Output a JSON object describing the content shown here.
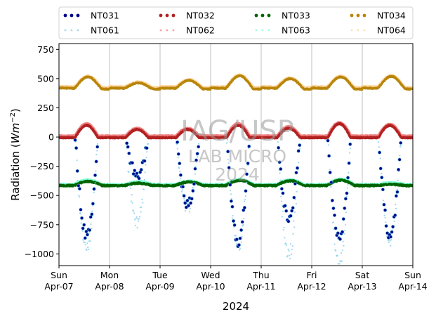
{
  "chart_data": {
    "type": "scatter",
    "title": "",
    "xlabel": "2024",
    "ylabel_prefix": "Radiation (",
    "ylabel_unit": "Wm",
    "ylabel_exp": "−2",
    "ylabel_suffix": ")",
    "ylim": [
      -1100,
      800
    ],
    "xlim": [
      "2024-04-07",
      "2024-04-14"
    ],
    "yticks": [
      {
        "value": 750,
        "label": "750"
      },
      {
        "value": 500,
        "label": "500"
      },
      {
        "value": 250,
        "label": "250"
      },
      {
        "value": 0,
        "label": "0"
      },
      {
        "value": -250,
        "label": "−250"
      },
      {
        "value": -500,
        "label": "−500"
      },
      {
        "value": -750,
        "label": "−750"
      },
      {
        "value": -1000,
        "label": "−1000"
      }
    ],
    "xticks": [
      {
        "date": "2024-04-07",
        "day": "Sun",
        "date_label": "Apr-07"
      },
      {
        "date": "2024-04-08",
        "day": "Mon",
        "date_label": "Apr-08"
      },
      {
        "date": "2024-04-09",
        "day": "Tue",
        "date_label": "Apr-09"
      },
      {
        "date": "2024-04-10",
        "day": "Wed",
        "date_label": "Apr-10"
      },
      {
        "date": "2024-04-11",
        "day": "Thu",
        "date_label": "Apr-11"
      },
      {
        "date": "2024-04-12",
        "day": "Fri",
        "date_label": "Apr-12"
      },
      {
        "date": "2024-04-13",
        "day": "Sat",
        "date_label": "Apr-13"
      },
      {
        "date": "2024-04-14",
        "day": "Sun",
        "date_label": "Apr-14"
      }
    ],
    "grid": "vertical-at-day-ticks",
    "legend_placement": "above-plot, 4 columns",
    "legend": [
      {
        "name": "NT031",
        "color": "#00008b",
        "style": "dots"
      },
      {
        "name": "NT032",
        "color": "#b22222",
        "style": "dots"
      },
      {
        "name": "NT033",
        "color": "#006400",
        "style": "dots"
      },
      {
        "name": "NT034",
        "color": "#b8860b",
        "style": "dots"
      },
      {
        "name": "NT061",
        "color": "#87ceeb",
        "style": "faint-dots"
      },
      {
        "name": "NT062",
        "color": "#f08080",
        "style": "faint-dots"
      },
      {
        "name": "NT063",
        "color": "#7fffd4",
        "style": "faint-dots"
      },
      {
        "name": "NT064",
        "color": "#ffd39b",
        "style": "faint-dots"
      }
    ],
    "series": [
      {
        "name": "NT031",
        "color": "#00008b",
        "description": "Net shortwave: 0 at night, daytime minima per day",
        "daily_min": [
          -840,
          -330,
          -580,
          -900,
          -690,
          -880,
          -840
        ]
      },
      {
        "name": "NT061",
        "color": "#87ceeb",
        "daily_min": [
          -960,
          -720,
          -610,
          -930,
          -1010,
          -1090,
          -890
        ]
      },
      {
        "name": "NT032",
        "color": "#b22222",
        "night": -5,
        "daily_peak": [
          100,
          65,
          65,
          100,
          75,
          115,
          100
        ]
      },
      {
        "name": "NT062",
        "color": "#f08080",
        "night": 5,
        "daily_peak": [
          110,
          70,
          70,
          110,
          85,
          120,
          105
        ]
      },
      {
        "name": "NT033",
        "color": "#006400",
        "night": -415,
        "daily_max": [
          -380,
          -395,
          -385,
          -370,
          -375,
          -370,
          -405
        ]
      },
      {
        "name": "NT063",
        "color": "#7fffd4",
        "night": -410,
        "daily_max": [
          -370,
          -385,
          -380,
          -365,
          -370,
          -365,
          -395
        ]
      },
      {
        "name": "NT034",
        "color": "#b8860b",
        "night": 420,
        "daily_peak": [
          520,
          470,
          490,
          530,
          505,
          520,
          525
        ]
      },
      {
        "name": "NT064",
        "color": "#ffd39b",
        "night": 430,
        "daily_peak": [
          525,
          475,
          495,
          535,
          510,
          525,
          530
        ]
      }
    ]
  },
  "watermark": {
    "line1": "IAG/USP",
    "line2": "LAB MICRO",
    "line3": "2024"
  }
}
